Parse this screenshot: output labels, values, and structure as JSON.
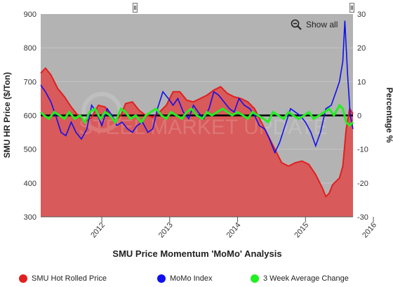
{
  "chart_data": {
    "type": "line",
    "title": "",
    "xlabel": "SMU Price Momentum 'MoMo' Analysis",
    "ylabel_left": "SMU HR Price ($/Ton)",
    "ylabel_right": "Percentage %",
    "x_ticks": [
      "2012",
      "2013",
      "2014",
      "2015",
      "2016"
    ],
    "x_range": [
      2011.6,
      2016.2
    ],
    "ylim_left": [
      300,
      900
    ],
    "yticks_left": [
      300,
      400,
      500,
      600,
      700,
      800,
      900
    ],
    "ylim_right": [
      -30,
      30
    ],
    "yticks_right": [
      -30,
      -20,
      -10,
      0,
      10,
      20,
      30
    ],
    "watermark": "STEEL MARKET UPDATE",
    "zoom_label": "Show all",
    "legend_placement": "bottom",
    "colors": {
      "plot_bg": "#b3b3b3",
      "price": "#e02020",
      "price_fill": "#d85a5a",
      "momo": "#1010ee",
      "avg": "#22ee22",
      "zero_line": "#000000"
    },
    "series": [
      {
        "name": "SMU Hot Rolled Price",
        "axis": "left",
        "x": [
          2011.6,
          2011.67,
          2011.75,
          2011.85,
          2011.95,
          2012.05,
          2012.15,
          2012.25,
          2012.35,
          2012.45,
          2012.55,
          2012.62,
          2012.7,
          2012.78,
          2012.85,
          2012.95,
          2013.05,
          2013.15,
          2013.25,
          2013.35,
          2013.45,
          2013.55,
          2013.65,
          2013.75,
          2013.85,
          2013.95,
          2014.05,
          2014.15,
          2014.25,
          2014.35,
          2014.45,
          2014.55,
          2014.65,
          2014.75,
          2014.85,
          2014.95,
          2015.05,
          2015.15,
          2015.25,
          2015.35,
          2015.45,
          2015.55,
          2015.65,
          2015.75,
          2015.8,
          2015.85,
          2015.9,
          2015.95,
          2016.0,
          2016.05,
          2016.1,
          2016.15,
          2016.2
        ],
        "values": [
          725,
          740,
          720,
          680,
          655,
          625,
          600,
          580,
          595,
          630,
          625,
          600,
          585,
          600,
          635,
          640,
          615,
          600,
          595,
          610,
          630,
          670,
          670,
          645,
          640,
          650,
          660,
          675,
          685,
          665,
          655,
          650,
          640,
          620,
          580,
          540,
          500,
          460,
          450,
          460,
          465,
          455,
          425,
          385,
          360,
          370,
          395,
          405,
          415,
          450,
          560,
          620,
          605
        ]
      },
      {
        "name": "MoMo Index",
        "axis": "right",
        "x": [
          2011.6,
          2011.67,
          2011.75,
          2011.82,
          2011.9,
          2011.97,
          2012.05,
          2012.12,
          2012.2,
          2012.28,
          2012.35,
          2012.42,
          2012.5,
          2012.58,
          2012.65,
          2012.72,
          2012.8,
          2012.88,
          2012.95,
          2013.02,
          2013.1,
          2013.18,
          2013.25,
          2013.32,
          2013.4,
          2013.48,
          2013.55,
          2013.62,
          2013.7,
          2013.78,
          2013.85,
          2013.92,
          2014.0,
          2014.08,
          2014.15,
          2014.22,
          2014.3,
          2014.38,
          2014.45,
          2014.52,
          2014.6,
          2014.68,
          2014.75,
          2014.82,
          2014.9,
          2014.97,
          2015.05,
          2015.12,
          2015.2,
          2015.28,
          2015.35,
          2015.42,
          2015.5,
          2015.58,
          2015.65,
          2015.72,
          2015.8,
          2015.88,
          2015.95,
          2016.0,
          2016.05,
          2016.08,
          2016.12,
          2016.16,
          2016.2
        ],
        "values": [
          9,
          7,
          4,
          0,
          -5,
          -6,
          -2,
          -5,
          -7,
          -4,
          3,
          1,
          -3,
          2,
          0,
          -3,
          -2,
          -4,
          -5,
          -3,
          -2,
          -5,
          -4,
          2,
          7,
          5,
          3,
          5,
          1,
          -1,
          3,
          1,
          -1,
          2,
          7,
          6,
          4,
          2,
          1,
          5,
          3,
          2,
          0,
          -3,
          -4,
          -7,
          -11,
          -8,
          -3,
          2,
          1,
          0,
          -2,
          -5,
          -9,
          -5,
          2,
          3,
          7,
          10,
          16,
          28,
          12,
          0,
          -4
        ]
      },
      {
        "name": "3 Week Average Change",
        "axis": "right",
        "x": [
          2011.6,
          2011.65,
          2011.72,
          2011.8,
          2011.88,
          2011.95,
          2012.02,
          2012.1,
          2012.18,
          2012.25,
          2012.32,
          2012.4,
          2012.48,
          2012.55,
          2012.62,
          2012.7,
          2012.78,
          2012.85,
          2012.92,
          2013.0,
          2013.08,
          2013.15,
          2013.22,
          2013.3,
          2013.38,
          2013.45,
          2013.52,
          2013.6,
          2013.68,
          2013.75,
          2013.82,
          2013.9,
          2013.98,
          2014.05,
          2014.12,
          2014.2,
          2014.28,
          2014.35,
          2014.42,
          2014.5,
          2014.58,
          2014.65,
          2014.72,
          2014.8,
          2014.88,
          2014.95,
          2015.02,
          2015.1,
          2015.18,
          2015.25,
          2015.32,
          2015.4,
          2015.48,
          2015.55,
          2015.62,
          2015.7,
          2015.78,
          2015.85,
          2015.92,
          2016.0,
          2016.05,
          2016.1,
          2016.15,
          2016.2
        ],
        "values": [
          1,
          0,
          -1,
          1,
          0,
          -1,
          1,
          -1,
          0,
          -2,
          1,
          2,
          -1,
          1,
          0,
          -2,
          2,
          1,
          -1,
          0,
          -2,
          0,
          1,
          2,
          0,
          -1,
          1,
          0,
          -1,
          1,
          2,
          0,
          -1,
          1,
          0,
          1,
          2,
          1,
          0,
          1,
          0,
          -1,
          1,
          0,
          -1,
          -2,
          1,
          0,
          -1,
          1,
          0,
          -1,
          0,
          1,
          -1,
          0,
          1,
          2,
          0,
          3,
          2,
          -2,
          -3,
          -2
        ]
      }
    ]
  }
}
